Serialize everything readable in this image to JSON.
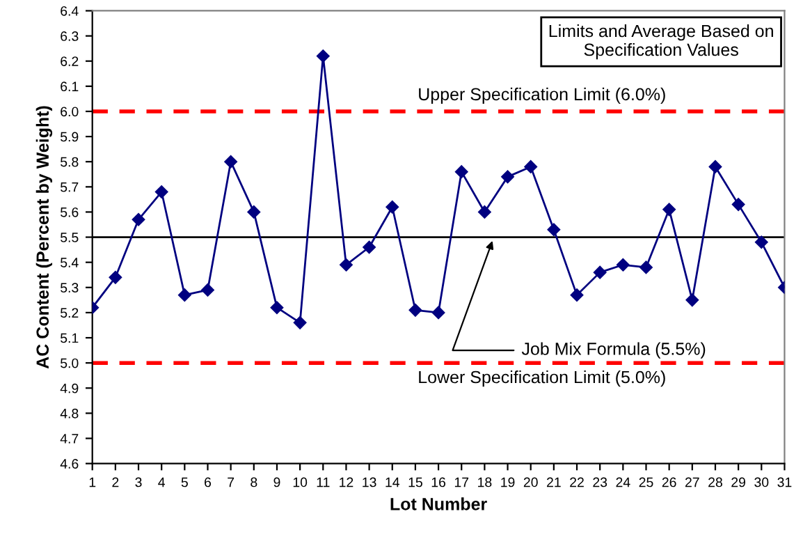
{
  "chart_data": {
    "type": "line",
    "xlabel": "Lot Number",
    "ylabel": "AC Content (Percent by Weight)",
    "x": [
      1,
      2,
      3,
      4,
      5,
      6,
      7,
      8,
      9,
      10,
      11,
      12,
      13,
      14,
      15,
      16,
      17,
      18,
      19,
      20,
      21,
      22,
      23,
      24,
      25,
      26,
      27,
      28,
      29,
      30,
      31
    ],
    "series": [
      {
        "color": "#000080",
        "values": [
          5.22,
          5.34,
          5.57,
          5.68,
          5.27,
          5.29,
          5.8,
          5.6,
          5.22,
          5.16,
          6.22,
          5.39,
          5.46,
          5.62,
          5.21,
          5.2,
          5.76,
          5.6,
          5.74,
          5.78,
          5.53,
          5.27,
          5.36,
          5.39,
          5.38,
          5.61,
          5.25,
          5.78,
          5.63,
          5.48,
          5.3
        ]
      }
    ],
    "xlim": [
      1,
      31
    ],
    "xticks": [
      1,
      2,
      3,
      4,
      5,
      6,
      7,
      8,
      9,
      10,
      11,
      12,
      13,
      14,
      15,
      16,
      17,
      18,
      19,
      20,
      21,
      22,
      23,
      24,
      25,
      26,
      27,
      28,
      29,
      30,
      31
    ],
    "ylim": [
      4.6,
      6.4
    ],
    "yticks": [
      4.6,
      4.7,
      4.8,
      4.9,
      {
        "value": 5,
        "label": "5.0"
      },
      5.1,
      5.2,
      5.3,
      5.4,
      5.5,
      5.6,
      5.7,
      5.8,
      5.9,
      {
        "value": 6,
        "label": "6.0"
      },
      6.1,
      6.2,
      6.3,
      6.4
    ],
    "ref_lines": [
      {
        "axis": "y",
        "value": 6.0,
        "label": "Upper Specification Limit (6.0%)",
        "color": "#ff0000",
        "line_style": "dashed"
      },
      {
        "axis": "y",
        "value": 5.0,
        "label": "Lower Specification Limit (5.0%)",
        "color": "#ff0000",
        "line_style": "dashed"
      },
      {
        "axis": "y",
        "value": 5.5,
        "label": "Job Mix Formula (5.5%)",
        "color": "#000000",
        "line_style": "solid"
      }
    ],
    "annotations": [
      "Limits and Average Based on\nSpecification Values"
    ],
    "marker": "diamond",
    "line_style": "solid",
    "grid": false,
    "legend": false
  }
}
